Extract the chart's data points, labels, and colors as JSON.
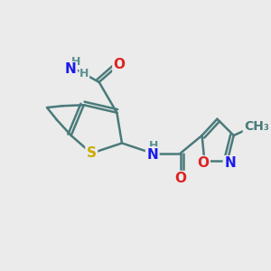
{
  "background_color": "#ebebeb",
  "bond_color": "#4a7a7a",
  "bond_width": 1.8,
  "atom_colors": {
    "N": "#1a1aee",
    "O": "#dd2222",
    "S": "#ccaa00",
    "H": "#5a9090",
    "C": "#4a7a7a"
  },
  "figsize": [
    3.0,
    3.0
  ],
  "dpi": 100
}
